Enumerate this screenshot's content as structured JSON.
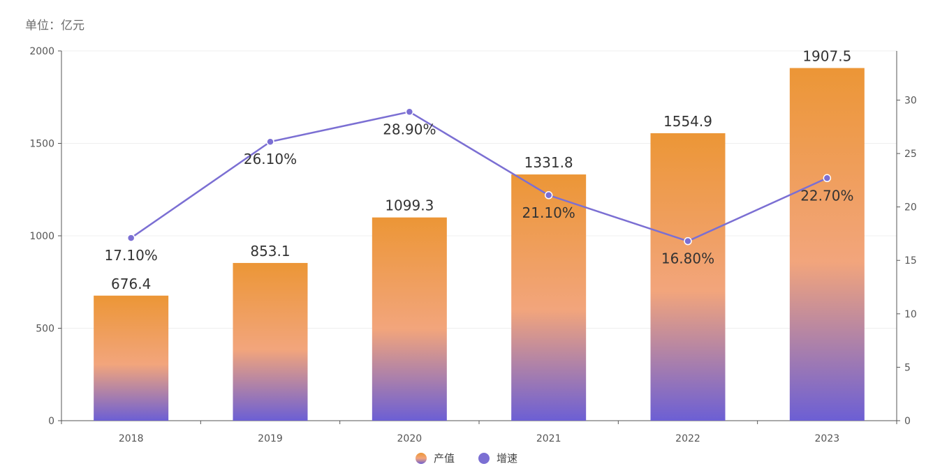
{
  "unit_label": "单位：亿元",
  "colors": {
    "bar_top": "#ec9636",
    "bar_mid": "#f2a57c",
    "bar_bottom": "#6c5fd4",
    "line": "#7b6fd3",
    "grid": "#efefef",
    "axis": "#555555"
  },
  "legend": {
    "bar_label": "产值",
    "line_label": "增速"
  },
  "chart_data": {
    "type": "bar+line",
    "categories": [
      "2018",
      "2019",
      "2020",
      "2021",
      "2022",
      "2023"
    ],
    "series": [
      {
        "name": "产值",
        "type": "bar",
        "axis": "left",
        "values": [
          676.4,
          853.1,
          1099.3,
          1331.8,
          1554.9,
          1907.5
        ],
        "labels": [
          "676.4",
          "853.1",
          "1099.3",
          "1331.8",
          "1554.9",
          "1907.5"
        ]
      },
      {
        "name": "增速",
        "type": "line",
        "axis": "right",
        "values": [
          17.1,
          26.1,
          28.9,
          21.1,
          16.8,
          22.7
        ],
        "labels": [
          "17.10%",
          "26.10%",
          "28.90%",
          "21.10%",
          "16.80%",
          "22.70%"
        ]
      }
    ],
    "y_left": {
      "range": [
        0,
        2000
      ],
      "ticks": [
        0,
        500,
        1000,
        1500,
        2000
      ]
    },
    "y_right": {
      "range": [
        0,
        34.6
      ],
      "ticks": [
        0,
        5,
        10,
        15,
        20,
        25,
        30
      ]
    },
    "grid": true,
    "legend_position": "bottom-center"
  }
}
